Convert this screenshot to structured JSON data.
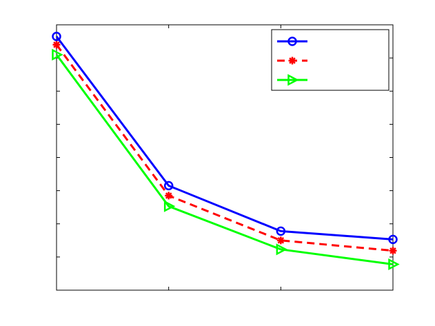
{
  "chart_data": {
    "type": "line",
    "title": "",
    "xlabel": "",
    "ylabel": "",
    "x": [
      1,
      2,
      3,
      4
    ],
    "xlim": [
      1,
      4
    ],
    "ylim": [
      0,
      8
    ],
    "grid": false,
    "legend_placement": "top-right",
    "series": [
      {
        "values": [
          7.65,
          3.15,
          1.78,
          1.53
        ],
        "color": "#0000ff",
        "marker": "circle",
        "line_style": "solid"
      },
      {
        "values": [
          7.4,
          2.85,
          1.5,
          1.19
        ],
        "color": "#ff0000",
        "marker": "asterisk",
        "line_style": "dashed"
      },
      {
        "values": [
          7.1,
          2.53,
          1.23,
          0.78
        ],
        "color": "#00ff00",
        "marker": "triangle-right",
        "line_style": "solid"
      }
    ]
  }
}
